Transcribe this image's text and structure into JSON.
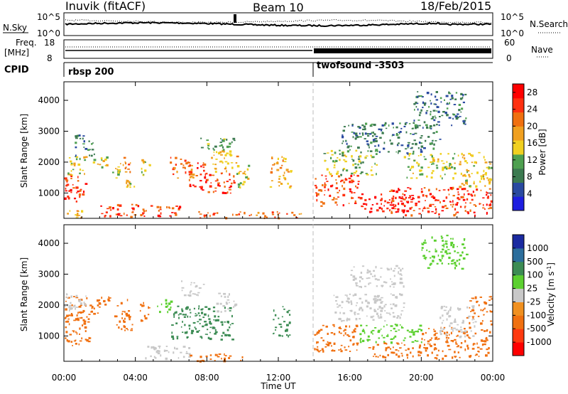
{
  "header": {
    "station": "Inuvik (fitACF)",
    "beam": "Beam 10",
    "date": "18/Feb/2015"
  },
  "noise_panel": {
    "left_label": "N.Sky",
    "right_label": "N.Search",
    "left_ticks": [
      "10^5",
      "10^0"
    ],
    "right_ticks": [
      "10^5",
      "10^0"
    ]
  },
  "freq_panel": {
    "left_label_1": "Freq.",
    "left_label_2": "[MHz]",
    "right_label": "Nave",
    "left_ticks": [
      "18",
      "8"
    ],
    "right_ticks": [
      "60",
      "0"
    ]
  },
  "cpid_panel": {
    "label": "CPID",
    "segments": [
      {
        "name": "rbsp 200",
        "start_hour": 0
      },
      {
        "name": "twofsound -3503",
        "start_hour": 14
      }
    ]
  },
  "time_axis": {
    "title": "Time UT",
    "ticks": [
      "00:00",
      "04:00",
      "08:00",
      "12:00",
      "16:00",
      "20:00",
      "00:00"
    ]
  },
  "colors": {
    "power": [
      "#1e1ee0",
      "#2a4aa0",
      "#3c7a50",
      "#4ea050",
      "#f0d020",
      "#f0a020",
      "#f07010",
      "#ff3010",
      "#ff0000"
    ],
    "velocity": [
      "#1a2aa0",
      "#2c6e9c",
      "#3c8c54",
      "#5cd030",
      "#c8c8c8",
      "#f09020",
      "#f07010",
      "#ff3a10",
      "#ff0000"
    ]
  },
  "chart_data": [
    {
      "type": "heatmap",
      "title": "",
      "xlabel": "",
      "ylabel": "Slant Range [km]",
      "x_range_hours": [
        0,
        24
      ],
      "ylim": [
        180,
        4600
      ],
      "y_ticks": [
        "1000",
        "2000",
        "3000",
        "4000"
      ],
      "colorbar": {
        "label": "Power [dB]",
        "ticks": [
          "4",
          "8",
          "12",
          "16",
          "20",
          "24",
          "28"
        ],
        "range": [
          0,
          30
        ]
      },
      "regions": [
        {
          "t0": 0.0,
          "t1": 1.2,
          "r0": 700,
          "r1": 1600,
          "v": 25
        },
        {
          "t0": 0.0,
          "t1": 1.3,
          "r0": 1600,
          "r1": 2200,
          "v": 14
        },
        {
          "t0": 0.6,
          "t1": 1.7,
          "r0": 2200,
          "r1": 2900,
          "v": 8
        },
        {
          "t0": 0.1,
          "t1": 1.1,
          "r0": 200,
          "r1": 450,
          "v": 18
        },
        {
          "t0": 1.5,
          "t1": 2.4,
          "r0": 1800,
          "r1": 2200,
          "v": 16
        },
        {
          "t0": 2.7,
          "t1": 3.1,
          "r0": 1500,
          "r1": 1900,
          "v": 14
        },
        {
          "t0": 3.1,
          "t1": 3.7,
          "r0": 1700,
          "r1": 2200,
          "v": 20
        },
        {
          "t0": 3.4,
          "t1": 4.0,
          "r0": 1200,
          "r1": 1500,
          "v": 16
        },
        {
          "t0": 2.0,
          "t1": 5.0,
          "r0": 250,
          "r1": 650,
          "v": 24
        },
        {
          "t0": 4.3,
          "t1": 4.8,
          "r0": 1600,
          "r1": 2100,
          "v": 15
        },
        {
          "t0": 5.0,
          "t1": 6.7,
          "r0": 250,
          "r1": 650,
          "v": 25
        },
        {
          "t0": 5.8,
          "t1": 7.2,
          "r0": 1400,
          "r1": 2200,
          "v": 22
        },
        {
          "t0": 7.0,
          "t1": 8.0,
          "r0": 1100,
          "r1": 2000,
          "v": 25
        },
        {
          "t0": 8.0,
          "t1": 9.6,
          "r0": 1000,
          "r1": 1700,
          "v": 24
        },
        {
          "t0": 8.2,
          "t1": 9.7,
          "r0": 1700,
          "r1": 2500,
          "v": 17
        },
        {
          "t0": 7.5,
          "t1": 9.5,
          "r0": 2400,
          "r1": 2800,
          "v": 10
        },
        {
          "t0": 9.6,
          "t1": 10.3,
          "r0": 1200,
          "r1": 2000,
          "v": 14
        },
        {
          "t0": 7.5,
          "t1": 13.3,
          "r0": 200,
          "r1": 420,
          "v": 22
        },
        {
          "t0": 11.5,
          "t1": 12.7,
          "r0": 1200,
          "r1": 2200,
          "v": 18
        },
        {
          "t0": 14.0,
          "t1": 16.5,
          "r0": 600,
          "r1": 1600,
          "v": 24
        },
        {
          "t0": 14.5,
          "t1": 17.5,
          "r0": 1600,
          "r1": 2400,
          "v": 13
        },
        {
          "t0": 16.5,
          "t1": 19.5,
          "r0": 400,
          "r1": 1000,
          "v": 28
        },
        {
          "t0": 18.0,
          "t1": 23.9,
          "r0": 300,
          "r1": 1200,
          "v": 25
        },
        {
          "t0": 19.0,
          "t1": 22.0,
          "r0": 1500,
          "r1": 2300,
          "v": 14
        },
        {
          "t0": 22.0,
          "t1": 23.9,
          "r0": 1200,
          "r1": 2400,
          "v": 16
        },
        {
          "t0": 15.5,
          "t1": 21.0,
          "r0": 2300,
          "r1": 3300,
          "v": 8
        },
        {
          "t0": 19.5,
          "t1": 22.5,
          "r0": 3200,
          "r1": 4300,
          "v": 8
        }
      ]
    },
    {
      "type": "heatmap",
      "title": "",
      "xlabel": "Time UT",
      "ylabel": "Slant Range [km]",
      "x_range_hours": [
        0,
        24
      ],
      "ylim": [
        180,
        4600
      ],
      "y_ticks": [
        "1000",
        "2000",
        "3000",
        "4000"
      ],
      "colorbar": {
        "label": "Velocity [m s-1]",
        "ticks": [
          "1000",
          "500",
          "100",
          "25",
          "-25",
          "-100",
          "-500",
          "-1000"
        ]
      },
      "regions": [
        {
          "t0": 0.0,
          "t1": 1.5,
          "r0": 700,
          "r1": 2300,
          "v": -300
        },
        {
          "t0": 1.5,
          "t1": 2.5,
          "r0": 1700,
          "r1": 2300,
          "v": -150
        },
        {
          "t0": 0.0,
          "t1": 1.3,
          "r0": 1800,
          "r1": 2400,
          "v": 0
        },
        {
          "t0": 2.8,
          "t1": 3.8,
          "r0": 1200,
          "r1": 2200,
          "v": -150
        },
        {
          "t0": 4.2,
          "t1": 4.8,
          "r0": 1500,
          "r1": 2100,
          "v": -200
        },
        {
          "t0": 5.2,
          "t1": 6.0,
          "r0": 1800,
          "r1": 2200,
          "v": 80
        },
        {
          "t0": 6.0,
          "t1": 9.5,
          "r0": 900,
          "r1": 2000,
          "v": 100
        },
        {
          "t0": 6.5,
          "t1": 7.8,
          "r0": 2300,
          "r1": 2800,
          "v": 0
        },
        {
          "t0": 8.5,
          "t1": 9.6,
          "r0": 1800,
          "r1": 2400,
          "v": 0
        },
        {
          "t0": 4.5,
          "t1": 7.0,
          "r0": 250,
          "r1": 700,
          "v": 0
        },
        {
          "t0": 7.0,
          "t1": 10.0,
          "r0": 200,
          "r1": 450,
          "v": -120
        },
        {
          "t0": 11.6,
          "t1": 12.6,
          "r0": 1000,
          "r1": 2000,
          "v": 100
        },
        {
          "t0": 14.0,
          "t1": 16.5,
          "r0": 500,
          "r1": 1400,
          "v": -250
        },
        {
          "t0": 15.0,
          "t1": 19.0,
          "r0": 1500,
          "r1": 2400,
          "v": 0
        },
        {
          "t0": 16.5,
          "t1": 20.0,
          "r0": 800,
          "r1": 1400,
          "v": 60
        },
        {
          "t0": 17.0,
          "t1": 20.0,
          "r0": 300,
          "r1": 800,
          "v": -300
        },
        {
          "t0": 20.0,
          "t1": 23.9,
          "r0": 300,
          "r1": 1300,
          "v": -300
        },
        {
          "t0": 21.0,
          "t1": 23.0,
          "r0": 1000,
          "r1": 2000,
          "v": 0
        },
        {
          "t0": 22.5,
          "t1": 23.9,
          "r0": 1400,
          "r1": 2300,
          "v": -150
        },
        {
          "t0": 16.0,
          "t1": 19.0,
          "r0": 2600,
          "r1": 3300,
          "v": 0
        },
        {
          "t0": 20.0,
          "t1": 22.5,
          "r0": 3200,
          "r1": 4300,
          "v": 60
        }
      ]
    }
  ]
}
